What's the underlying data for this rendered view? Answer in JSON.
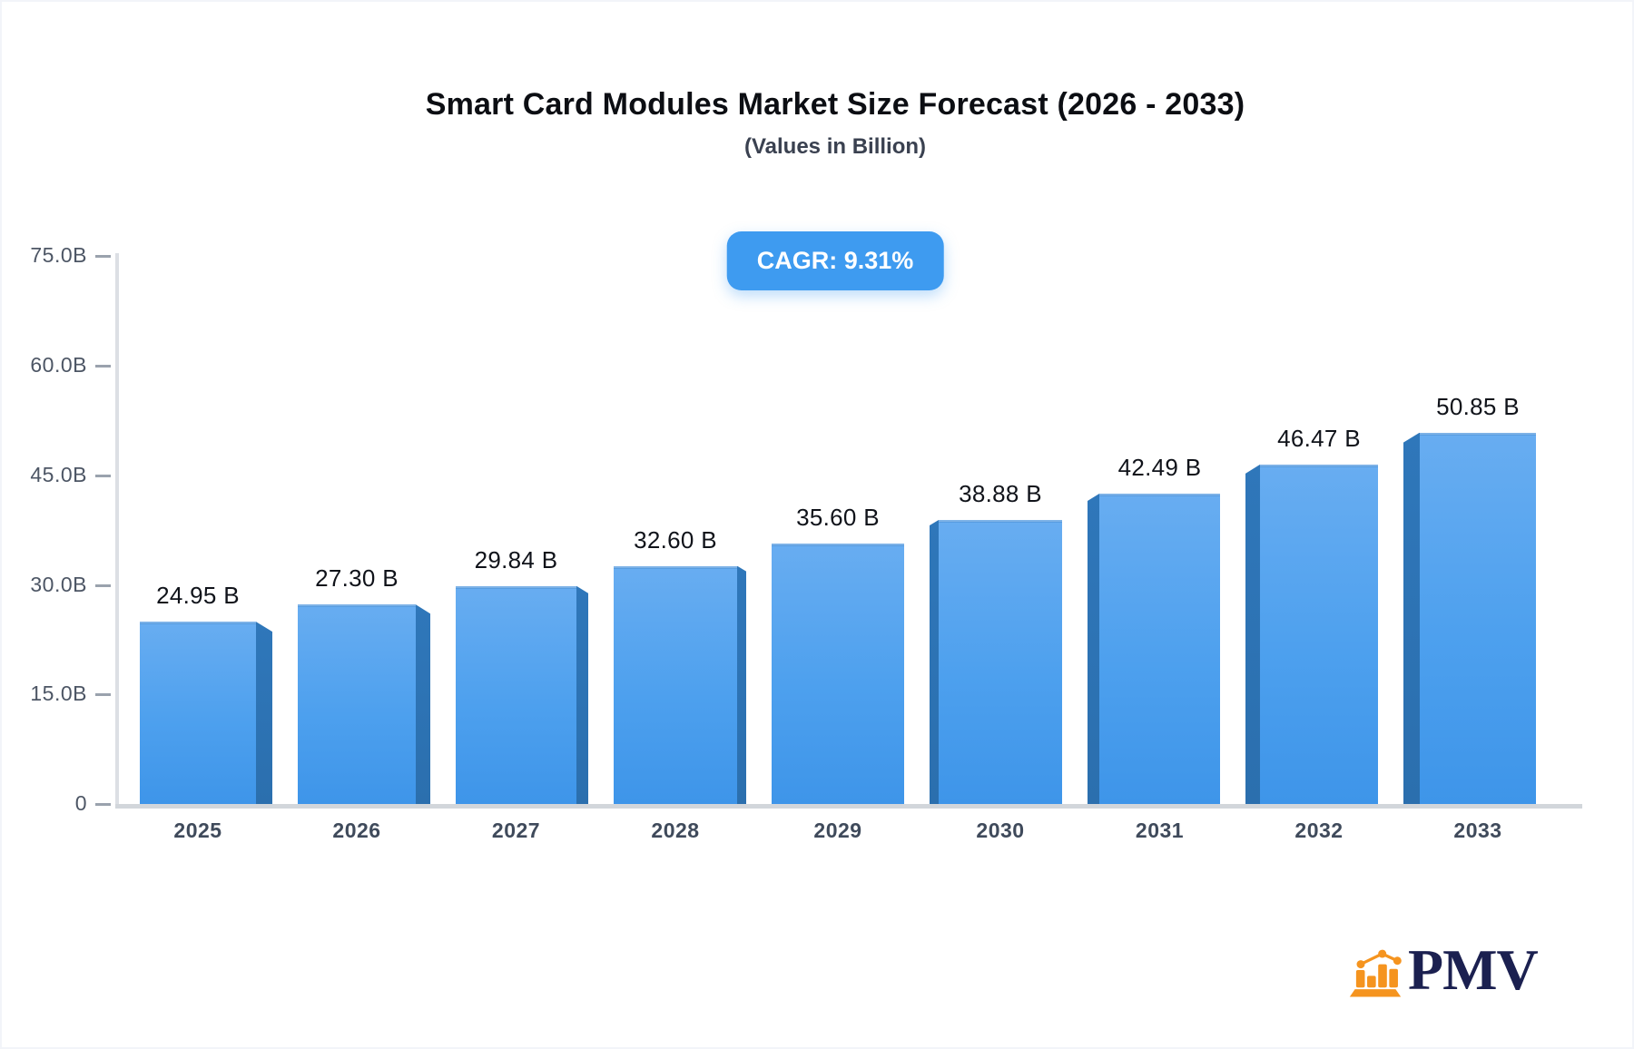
{
  "title": "Smart Card Modules Market Size Forecast (2026 - 2033)",
  "subtitle": "(Values in Billion)",
  "badge": {
    "label": "CAGR: 9.31%",
    "bg_color": "#3e9bf0",
    "text_color": "#ffffff"
  },
  "chart_data": {
    "type": "bar",
    "title": "Smart Card Modules Market Size Forecast (2026 - 2033)",
    "subtitle": "(Values in Billion)",
    "cagr": "9.31%",
    "categories": [
      "2025",
      "2026",
      "2027",
      "2028",
      "2029",
      "2030",
      "2031",
      "2032",
      "2033"
    ],
    "values": [
      24.95,
      27.3,
      29.84,
      32.6,
      35.6,
      38.88,
      42.49,
      46.47,
      50.85
    ],
    "value_labels": [
      "24.95 B",
      "27.30 B",
      "29.84 B",
      "32.60 B",
      "35.60 B",
      "38.88 B",
      "42.49 B",
      "46.47 B",
      "50.85 B"
    ],
    "unit": "Billion",
    "xlabel": "",
    "ylabel": "",
    "ylim": [
      0,
      75
    ],
    "grid": false,
    "legend": false,
    "yticks": [
      {
        "value": 75,
        "label": "75.0B"
      },
      {
        "value": 60,
        "label": "60.0B"
      },
      {
        "value": 45,
        "label": "45.0B"
      },
      {
        "value": 30,
        "label": "30.0B"
      },
      {
        "value": 15,
        "label": "15.0B"
      },
      {
        "value": 0,
        "label": "0"
      }
    ],
    "colors": {
      "bar_top": "#68adf1",
      "bar_bottom": "#3e95e9",
      "bar_side_3d": "#2b71b3",
      "axis_line": "#d2d6db",
      "tick_text": "#4d5665",
      "value_label_text": "#10131a",
      "category_text": "#3f4a5b"
    }
  },
  "logo": {
    "text": "PMV",
    "icon": "bar-chart-logo-icon",
    "icon_color": "#f5941f",
    "text_color": "#1b2050"
  }
}
